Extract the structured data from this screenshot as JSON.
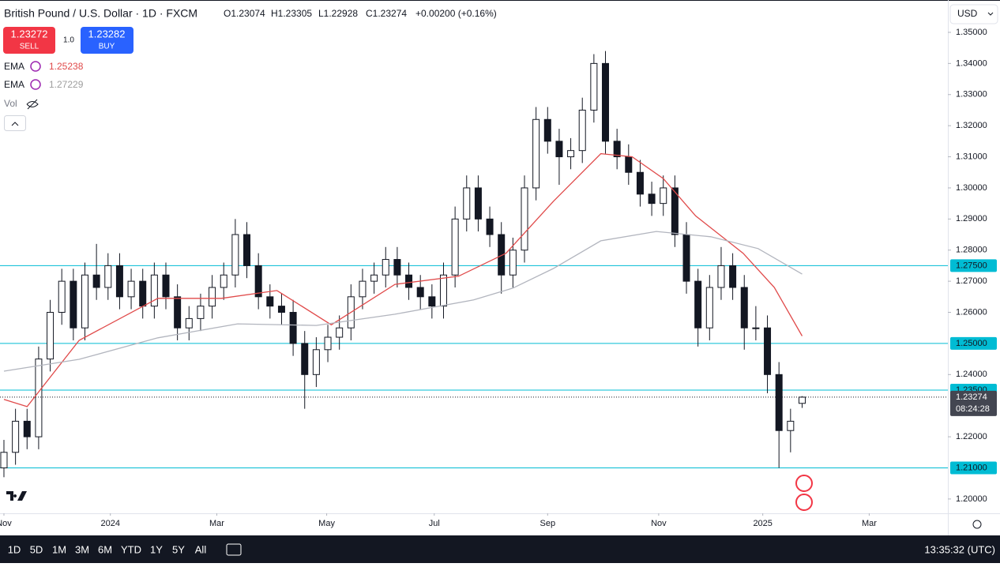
{
  "header": {
    "symbol": "British Pound / U.S. Dollar · 1D · FXCM",
    "legend": [
      "O1.23074",
      "H1.23305",
      "L1.22928",
      "C1.23274",
      "+0.00200 (+0.16%)"
    ],
    "currency": "USD"
  },
  "trade": {
    "sell_price": "1.23272",
    "sell": "SELL",
    "qty": "1.0",
    "buy_price": "1.23282",
    "buy": "BUY"
  },
  "indicators": [
    {
      "name": "EMA",
      "value": "1.25238",
      "color": "#e04a4a"
    },
    {
      "name": "EMA",
      "value": "1.27229",
      "color": "#9e9e9e"
    },
    {
      "name": "Vol"
    }
  ],
  "toolbar": {
    "ranges": [
      "1D",
      "5D",
      "1M",
      "3M",
      "6M",
      "YTD",
      "1Y",
      "5Y",
      "All"
    ],
    "clock": "13:35:32 (UTC)"
  },
  "chart_data": {
    "type": "candlestick",
    "ohlc": [
      [
        1.21,
        1.219,
        1.207,
        1.215
      ],
      [
        1.215,
        1.229,
        1.211,
        1.225
      ],
      [
        1.225,
        1.229,
        1.216,
        1.22
      ],
      [
        1.22,
        1.249,
        1.216,
        1.245
      ],
      [
        1.245,
        1.264,
        1.241,
        1.26
      ],
      [
        1.26,
        1.274,
        1.256,
        1.27
      ],
      [
        1.27,
        1.274,
        1.251,
        1.255
      ],
      [
        1.255,
        1.276,
        1.251,
        1.272
      ],
      [
        1.272,
        1.282,
        1.264,
        1.268
      ],
      [
        1.268,
        1.279,
        1.264,
        1.275
      ],
      [
        1.275,
        1.279,
        1.261,
        1.265
      ],
      [
        1.265,
        1.274,
        1.261,
        1.27
      ],
      [
        1.27,
        1.274,
        1.258,
        1.262
      ],
      [
        1.262,
        1.276,
        1.258,
        1.272
      ],
      [
        1.272,
        1.276,
        1.261,
        1.265
      ],
      [
        1.265,
        1.269,
        1.251,
        1.255
      ],
      [
        1.255,
        1.262,
        1.251,
        1.258
      ],
      [
        1.258,
        1.266,
        1.254,
        1.262
      ],
      [
        1.262,
        1.272,
        1.258,
        1.268
      ],
      [
        1.268,
        1.276,
        1.264,
        1.272
      ],
      [
        1.272,
        1.29,
        1.268,
        1.285
      ],
      [
        1.285,
        1.289,
        1.271,
        1.275
      ],
      [
        1.275,
        1.279,
        1.261,
        1.265
      ],
      [
        1.265,
        1.269,
        1.258,
        1.262
      ],
      [
        1.262,
        1.266,
        1.256,
        1.26
      ],
      [
        1.26,
        1.264,
        1.246,
        1.25
      ],
      [
        1.25,
        1.254,
        1.229,
        1.24
      ],
      [
        1.24,
        1.252,
        1.236,
        1.248
      ],
      [
        1.248,
        1.256,
        1.244,
        1.252
      ],
      [
        1.252,
        1.259,
        1.248,
        1.255
      ],
      [
        1.255,
        1.269,
        1.251,
        1.265
      ],
      [
        1.265,
        1.274,
        1.261,
        1.27
      ],
      [
        1.27,
        1.276,
        1.266,
        1.272
      ],
      [
        1.272,
        1.281,
        1.268,
        1.277
      ],
      [
        1.277,
        1.281,
        1.268,
        1.272
      ],
      [
        1.272,
        1.276,
        1.264,
        1.268
      ],
      [
        1.268,
        1.272,
        1.261,
        1.265
      ],
      [
        1.265,
        1.269,
        1.258,
        1.262
      ],
      [
        1.262,
        1.276,
        1.258,
        1.272
      ],
      [
        1.272,
        1.294,
        1.268,
        1.29
      ],
      [
        1.29,
        1.304,
        1.286,
        1.3
      ],
      [
        1.3,
        1.304,
        1.286,
        1.29
      ],
      [
        1.29,
        1.294,
        1.281,
        1.285
      ],
      [
        1.285,
        1.289,
        1.266,
        1.272
      ],
      [
        1.272,
        1.284,
        1.268,
        1.28
      ],
      [
        1.28,
        1.304,
        1.276,
        1.3
      ],
      [
        1.3,
        1.326,
        1.296,
        1.322
      ],
      [
        1.322,
        1.326,
        1.311,
        1.315
      ],
      [
        1.315,
        1.319,
        1.301,
        1.31
      ],
      [
        1.31,
        1.316,
        1.306,
        1.312
      ],
      [
        1.312,
        1.329,
        1.308,
        1.325
      ],
      [
        1.325,
        1.343,
        1.321,
        1.34
      ],
      [
        1.34,
        1.344,
        1.311,
        1.315
      ],
      [
        1.315,
        1.319,
        1.306,
        1.31
      ],
      [
        1.31,
        1.314,
        1.301,
        1.305
      ],
      [
        1.305,
        1.309,
        1.294,
        1.298
      ],
      [
        1.298,
        1.302,
        1.291,
        1.295
      ],
      [
        1.295,
        1.304,
        1.291,
        1.3
      ],
      [
        1.3,
        1.304,
        1.281,
        1.285
      ],
      [
        1.285,
        1.289,
        1.266,
        1.27
      ],
      [
        1.27,
        1.274,
        1.249,
        1.255
      ],
      [
        1.255,
        1.272,
        1.251,
        1.268
      ],
      [
        1.268,
        1.281,
        1.264,
        1.275
      ],
      [
        1.275,
        1.279,
        1.264,
        1.268
      ],
      [
        1.268,
        1.272,
        1.248,
        1.255
      ],
      [
        1.255,
        1.262,
        1.251,
        1.255
      ],
      [
        1.255,
        1.259,
        1.234,
        1.24
      ],
      [
        1.24,
        1.244,
        1.21,
        1.222
      ],
      [
        1.222,
        1.229,
        1.215,
        1.225
      ],
      [
        1.23074,
        1.23305,
        1.22928,
        1.23274
      ]
    ],
    "up_color": "#ffffff",
    "down_color": "#131722",
    "lines": [
      {
        "name": "EMA",
        "color": "#e04a4a",
        "x": [
          0,
          2,
          6.5,
          13.3,
          18.8,
          23.6,
          28.3,
          33.8,
          39.3,
          43.4,
          47.5,
          51.6,
          54.3,
          57,
          59.8,
          63.9,
          66.6,
          69
        ],
        "values": [
          1.232,
          1.2297,
          1.251,
          1.2645,
          1.2645,
          1.267,
          1.256,
          1.269,
          1.2716,
          1.279,
          1.2957,
          1.311,
          1.31,
          1.303,
          1.291,
          1.279,
          1.268,
          1.25238
        ]
      },
      {
        "name": "EMA",
        "color": "#b2b5be",
        "x": [
          0,
          6.5,
          13.3,
          20.2,
          27,
          33.8,
          40.6,
          44,
          47.5,
          51.6,
          56.4,
          61.1,
          65.2,
          69
        ],
        "values": [
          1.2411,
          1.2449,
          1.2518,
          1.2563,
          1.2558,
          1.2594,
          1.264,
          1.2678,
          1.2741,
          1.283,
          1.286,
          1.2843,
          1.2805,
          1.27229
        ]
      }
    ],
    "levels": [
      {
        "value": 1.275,
        "label": "1.27500"
      },
      {
        "value": 1.25,
        "label": "1.25000"
      },
      {
        "value": 1.235,
        "label": "1.23500"
      },
      {
        "value": 1.21,
        "label": "1.21000"
      }
    ],
    "level_color": "#00bcd4",
    "last": {
      "value": 1.23274,
      "label": "1.23274",
      "countdown": "08:24:28"
    },
    "xlim": [
      -0.34,
      81.6
    ],
    "xticks": [
      {
        "value": 0,
        "label": "Nov"
      },
      {
        "value": 9.2,
        "label": "2024"
      },
      {
        "value": 18.4,
        "label": "Mar"
      },
      {
        "value": 27.9,
        "label": "May"
      },
      {
        "value": 37.2,
        "label": "Jul"
      },
      {
        "value": 47,
        "label": "Sep"
      },
      {
        "value": 56.6,
        "label": "Nov"
      },
      {
        "value": 65.6,
        "label": "2025"
      },
      {
        "value": 74.8,
        "label": "Mar"
      }
    ],
    "ylim": [
      1.1954,
      1.3604
    ],
    "yticks": [
      {
        "value": 1.2,
        "label": "1.20000"
      },
      {
        "value": 1.22,
        "label": "1.22000"
      },
      {
        "value": 1.24,
        "label": "1.24000"
      },
      {
        "value": 1.26,
        "label": "1.26000"
      },
      {
        "value": 1.27,
        "label": "1.27000"
      },
      {
        "value": 1.28,
        "label": "1.28000"
      },
      {
        "value": 1.29,
        "label": "1.29000"
      },
      {
        "value": 1.3,
        "label": "1.30000"
      },
      {
        "value": 1.31,
        "label": "1.31000"
      },
      {
        "value": 1.32,
        "label": "1.32000"
      },
      {
        "value": 1.33,
        "label": "1.33000"
      },
      {
        "value": 1.34,
        "label": "1.34000"
      },
      {
        "value": 1.35,
        "label": "1.35000"
      }
    ]
  }
}
